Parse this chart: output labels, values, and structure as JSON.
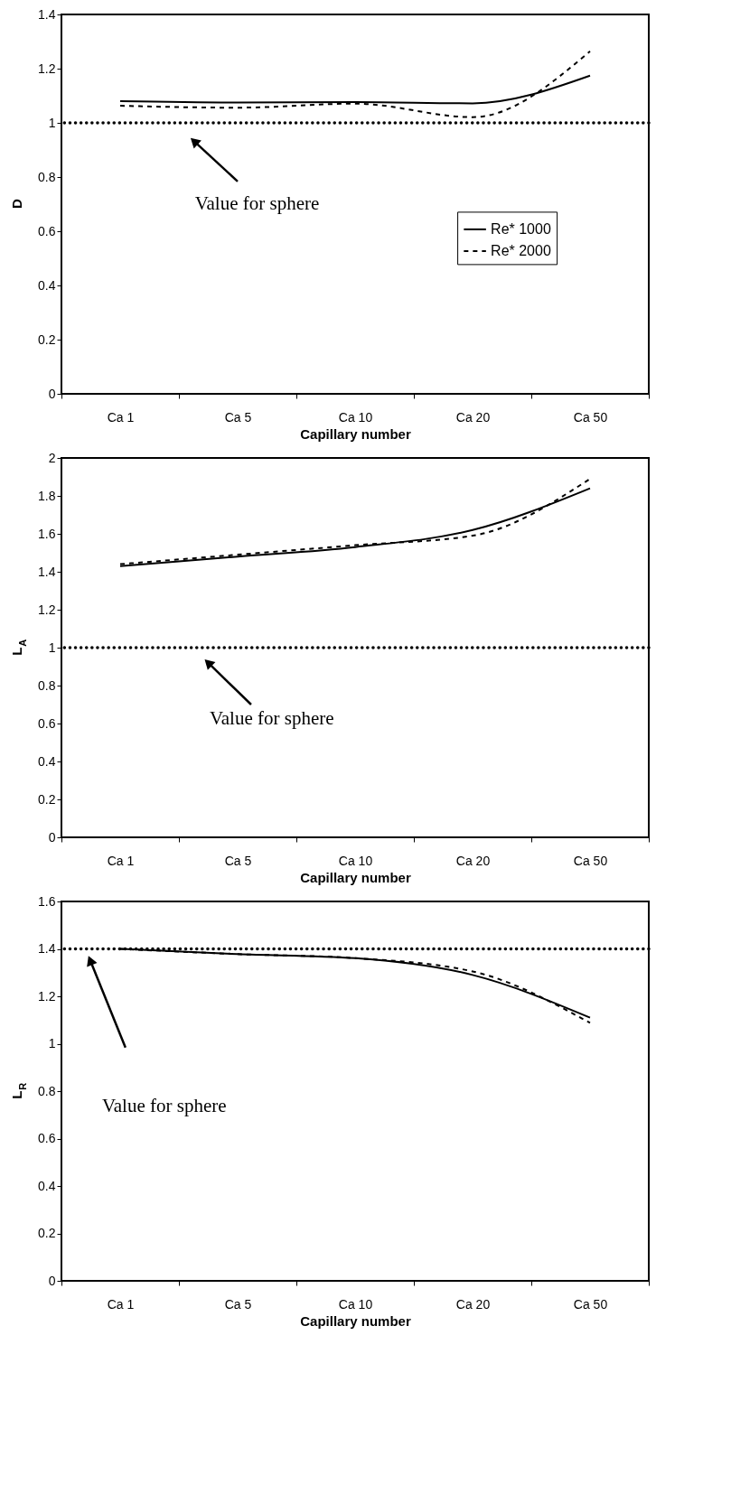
{
  "chart_data": [
    {
      "type": "line",
      "categories": [
        "Ca 1",
        "Ca 5",
        "Ca 10",
        "Ca 20",
        "Ca 50"
      ],
      "xlabel": "Capillary number",
      "ylabel": "D",
      "ylim": [
        0,
        1.4
      ],
      "yticks": [
        0,
        0.2,
        0.4,
        0.6,
        0.8,
        1,
        1.2,
        1.4
      ],
      "grid": false,
      "legend": "right",
      "marker": "none",
      "series": [
        {
          "name": "Re* 1000",
          "color": "#000000",
          "line_style": "solid",
          "values": [
            1.08,
            1.075,
            1.077,
            1.072,
            1.174
          ]
        },
        {
          "name": "Re* 2000",
          "color": "#000000",
          "line_style": "dashed",
          "values": [
            1.063,
            1.056,
            1.071,
            1.021,
            1.264
          ]
        }
      ],
      "ref_lines": [
        {
          "axis": "y",
          "value": 1,
          "color": "#000000",
          "line_style": "dotted"
        }
      ],
      "annotations": [
        "Value for sphere"
      ]
    },
    {
      "type": "line",
      "categories": [
        "Ca 1",
        "Ca 5",
        "Ca 10",
        "Ca 20",
        "Ca 50"
      ],
      "xlabel": "Capillary number",
      "ylabel": "L$_{A}$",
      "ylim": [
        0,
        2
      ],
      "yticks": [
        0,
        0.2,
        0.4,
        0.6,
        0.8,
        1,
        1.2,
        1.4,
        1.6,
        1.8,
        2
      ],
      "grid": false,
      "legend": "right",
      "marker": "none",
      "series": [
        {
          "name": "Re* 1000",
          "color": "#000000",
          "line_style": "solid",
          "values": [
            1.43,
            1.48,
            1.53,
            1.62,
            1.84
          ]
        },
        {
          "name": "Re* 2000",
          "color": "#000000",
          "line_style": "dashed",
          "values": [
            1.44,
            1.49,
            1.54,
            1.59,
            1.89
          ]
        }
      ],
      "ref_lines": [
        {
          "axis": "y",
          "value": 1,
          "color": "#000000",
          "line_style": "dotted"
        }
      ],
      "annotations": [
        "Value for sphere"
      ]
    },
    {
      "type": "line",
      "categories": [
        "Ca 1",
        "Ca 5",
        "Ca 10",
        "Ca 20",
        "Ca 50"
      ],
      "xlabel": "Capillary number",
      "ylabel": "L$_{R}$",
      "ylim": [
        0,
        1.6
      ],
      "yticks": [
        0,
        0.2,
        0.4,
        0.6,
        0.8,
        1,
        1.2,
        1.4,
        1.6
      ],
      "grid": false,
      "legend": "right",
      "marker": "none",
      "series": [
        {
          "name": "Re* 1000",
          "color": "#000000",
          "line_style": "solid",
          "values": [
            1.4,
            1.378,
            1.361,
            1.29,
            1.11
          ]
        },
        {
          "name": "Re* 2000",
          "color": "#000000",
          "line_style": "dashed",
          "values": [
            1.4,
            1.378,
            1.361,
            1.305,
            1.088
          ]
        }
      ],
      "ref_lines": [
        {
          "axis": "y",
          "value": 1.4,
          "color": "#000000",
          "line_style": "dotted"
        }
      ],
      "annotations": [
        "Value for sphere"
      ]
    }
  ]
}
